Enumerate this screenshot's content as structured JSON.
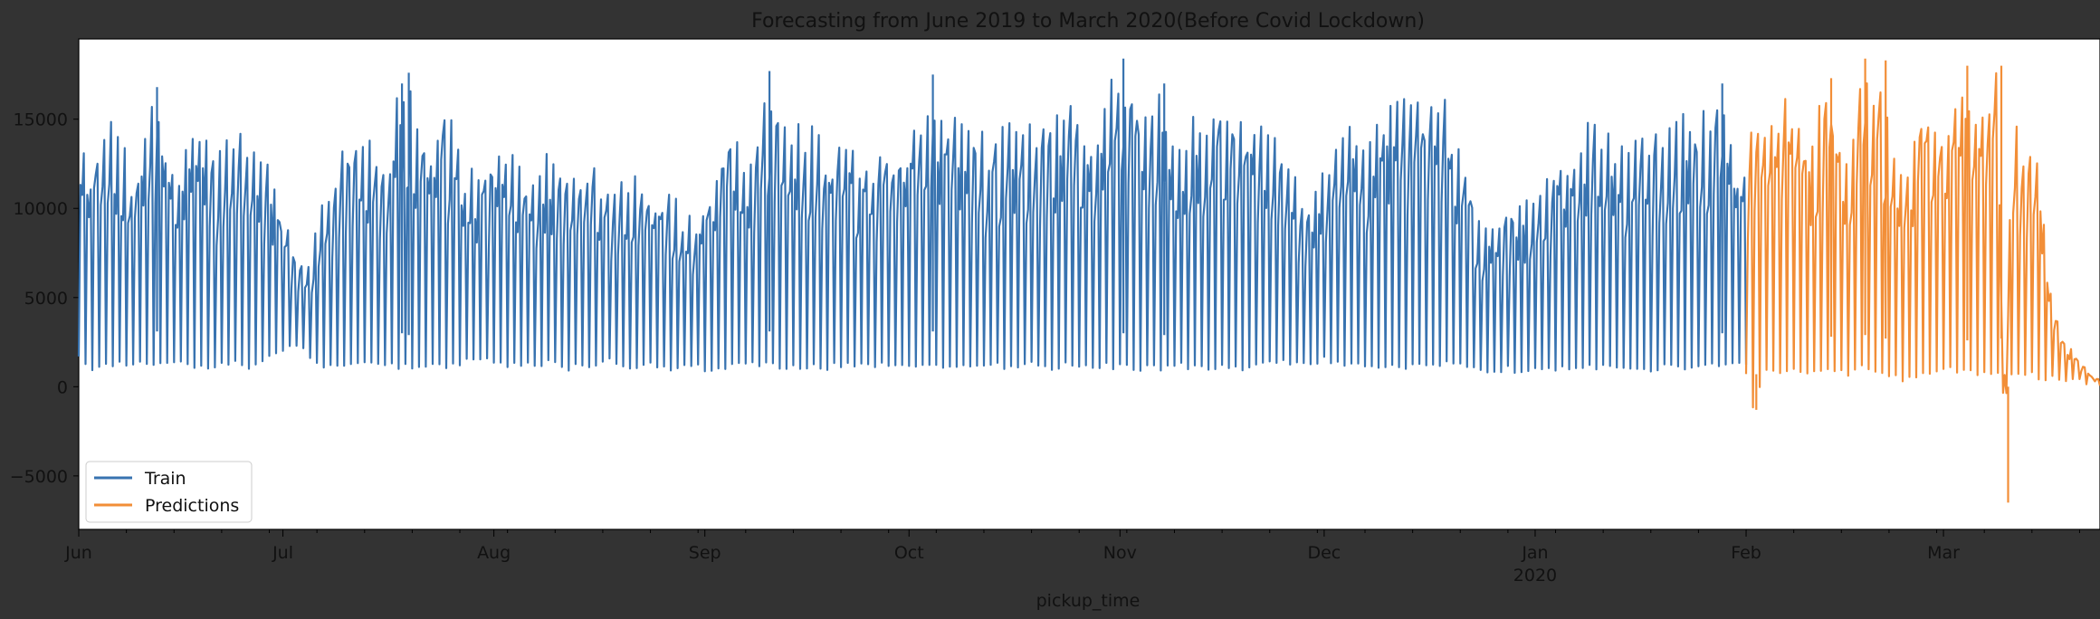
{
  "chart_data": {
    "type": "line",
    "title": "Forecasting from June 2019 to  March 2020(Before Covid Lockdown)",
    "xlabel": "pickup_time",
    "ylabel": "",
    "xlim": [
      "2019-06-01",
      "2020-03-23"
    ],
    "ylim": [
      -8000,
      19500
    ],
    "yticks": [
      -5000,
      0,
      5000,
      10000,
      15000
    ],
    "xticks": [
      {
        "date": "2019-06-01",
        "label": "Jun"
      },
      {
        "date": "2019-07-01",
        "label": "Jul"
      },
      {
        "date": "2019-08-01",
        "label": "Aug"
      },
      {
        "date": "2019-09-01",
        "label": "Sep"
      },
      {
        "date": "2019-10-01",
        "label": "Oct"
      },
      {
        "date": "2019-11-01",
        "label": "Nov"
      },
      {
        "date": "2019-12-01",
        "label": "Dec"
      },
      {
        "date": "2020-01-01",
        "label": "Jan",
        "sublabel": "2020"
      },
      {
        "date": "2020-02-01",
        "label": "Feb"
      },
      {
        "date": "2020-03-01",
        "label": "Mar"
      }
    ],
    "grid": false,
    "legend_position": "lower-left",
    "colors": {
      "figure_background": "#333333",
      "axes_background": "#ffffff",
      "train": "#3873b0",
      "predictions": "#f28e37"
    },
    "note_values": "Hourly series; values are the approximate daily maximum and minimum read off the plot per date.",
    "series": [
      {
        "name": "Train",
        "color": "#3873b0",
        "daily_max_min": [
          [
            "2019-06-01",
            13500,
            1600
          ],
          [
            "2019-06-03",
            12800,
            900
          ],
          [
            "2019-06-06",
            15400,
            1000
          ],
          [
            "2019-06-09",
            12000,
            1200
          ],
          [
            "2019-06-12",
            16800,
            1100
          ],
          [
            "2019-06-15",
            12500,
            1300
          ],
          [
            "2019-06-18",
            15500,
            800
          ],
          [
            "2019-06-21",
            13000,
            1000
          ],
          [
            "2019-06-24",
            15300,
            1100
          ],
          [
            "2019-06-27",
            13500,
            900
          ],
          [
            "2019-06-29",
            12700,
            1500
          ],
          [
            "2019-07-01",
            9500,
            1900
          ],
          [
            "2019-07-04",
            6700,
            1900
          ],
          [
            "2019-07-07",
            10500,
            1000
          ],
          [
            "2019-07-10",
            14000,
            1000
          ],
          [
            "2019-07-13",
            15000,
            1100
          ],
          [
            "2019-07-16",
            12000,
            1200
          ],
          [
            "2019-07-18",
            17000,
            1000
          ],
          [
            "2019-07-19",
            17600,
            900
          ],
          [
            "2019-07-22",
            14000,
            1100
          ],
          [
            "2019-07-25",
            16000,
            1000
          ],
          [
            "2019-07-28",
            12300,
            1200
          ],
          [
            "2019-07-31",
            13000,
            1200
          ],
          [
            "2019-08-03",
            14100,
            1000
          ],
          [
            "2019-08-06",
            12000,
            1000
          ],
          [
            "2019-08-09",
            13500,
            1100
          ],
          [
            "2019-08-12",
            12500,
            900
          ],
          [
            "2019-08-15",
            13000,
            1000
          ],
          [
            "2019-08-18",
            11000,
            1200
          ],
          [
            "2019-08-21",
            12000,
            1000
          ],
          [
            "2019-08-24",
            11500,
            1100
          ],
          [
            "2019-08-27",
            11000,
            900
          ],
          [
            "2019-08-30",
            9500,
            1000
          ],
          [
            "2019-09-02",
            11500,
            700
          ],
          [
            "2019-09-05",
            15500,
            1000
          ],
          [
            "2019-09-08",
            13000,
            1000
          ],
          [
            "2019-09-10",
            17700,
            1100
          ],
          [
            "2019-09-13",
            15000,
            900
          ],
          [
            "2019-09-16",
            15300,
            1000
          ],
          [
            "2019-09-19",
            13500,
            900
          ],
          [
            "2019-09-22",
            14000,
            1000
          ],
          [
            "2019-09-25",
            13000,
            900
          ],
          [
            "2019-09-28",
            13500,
            1000
          ],
          [
            "2019-10-01",
            14300,
            900
          ],
          [
            "2019-10-04",
            17500,
            1100
          ],
          [
            "2019-10-07",
            15000,
            1000
          ],
          [
            "2019-10-10",
            15500,
            900
          ],
          [
            "2019-10-13",
            14000,
            1000
          ],
          [
            "2019-10-16",
            15500,
            900
          ],
          [
            "2019-10-19",
            15000,
            1000
          ],
          [
            "2019-10-22",
            15500,
            900
          ],
          [
            "2019-10-25",
            16000,
            1000
          ],
          [
            "2019-10-28",
            15000,
            900
          ],
          [
            "2019-11-01",
            18400,
            1000
          ],
          [
            "2019-11-04",
            16300,
            800
          ],
          [
            "2019-11-07",
            17000,
            900
          ],
          [
            "2019-11-10",
            14500,
            1000
          ],
          [
            "2019-11-13",
            16300,
            900
          ],
          [
            "2019-11-16",
            15800,
            1000
          ],
          [
            "2019-11-19",
            15500,
            900
          ],
          [
            "2019-11-22",
            15000,
            1000
          ],
          [
            "2019-11-25",
            14200,
            1100
          ],
          [
            "2019-11-28",
            10500,
            1200
          ],
          [
            "2019-12-01",
            12500,
            1300
          ],
          [
            "2019-12-04",
            15900,
            900
          ],
          [
            "2019-12-07",
            14500,
            1000
          ],
          [
            "2019-12-10",
            16300,
            900
          ],
          [
            "2019-12-13",
            16400,
            1000
          ],
          [
            "2019-12-16",
            15800,
            900
          ],
          [
            "2019-12-19",
            16400,
            1100
          ],
          [
            "2019-12-22",
            12000,
            1000
          ],
          [
            "2019-12-25",
            9700,
            500
          ],
          [
            "2019-12-28",
            10500,
            800
          ],
          [
            "2020-01-01",
            10700,
            700
          ],
          [
            "2020-01-04",
            13000,
            900
          ],
          [
            "2020-01-07",
            14100,
            800
          ],
          [
            "2020-01-10",
            15500,
            900
          ],
          [
            "2020-01-13",
            14000,
            1000
          ],
          [
            "2020-01-16",
            15000,
            900
          ],
          [
            "2020-01-19",
            14500,
            800
          ],
          [
            "2020-01-22",
            15400,
            1000
          ],
          [
            "2020-01-25",
            15000,
            900
          ],
          [
            "2020-01-28",
            17000,
            1000
          ],
          [
            "2020-01-31",
            12500,
            1100
          ]
        ]
      },
      {
        "name": "Predictions",
        "color": "#f28e37",
        "daily_max_min": [
          [
            "2020-02-01",
            13500,
            600
          ],
          [
            "2020-02-02",
            15500,
            -1300
          ],
          [
            "2020-02-04",
            14500,
            900
          ],
          [
            "2020-02-07",
            16300,
            600
          ],
          [
            "2020-02-10",
            14000,
            700
          ],
          [
            "2020-02-13",
            17300,
            800
          ],
          [
            "2020-02-16",
            14000,
            600
          ],
          [
            "2020-02-18",
            18400,
            900
          ],
          [
            "2020-02-21",
            18300,
            700
          ],
          [
            "2020-02-24",
            12000,
            200
          ],
          [
            "2020-02-27",
            16500,
            600
          ],
          [
            "2020-03-01",
            14000,
            800
          ],
          [
            "2020-03-04",
            18000,
            600
          ],
          [
            "2020-03-07",
            15500,
            500
          ],
          [
            "2020-03-09",
            18000,
            700
          ],
          [
            "2020-03-10",
            -6500,
            500
          ],
          [
            "2020-03-11",
            16000,
            600
          ],
          [
            "2020-03-13",
            13500,
            500
          ],
          [
            "2020-03-15",
            12500,
            400
          ],
          [
            "2020-03-17",
            5000,
            300
          ],
          [
            "2020-03-19",
            2500,
            200
          ],
          [
            "2020-03-21",
            1500,
            100
          ],
          [
            "2020-03-23",
            500,
            50
          ]
        ]
      }
    ]
  }
}
